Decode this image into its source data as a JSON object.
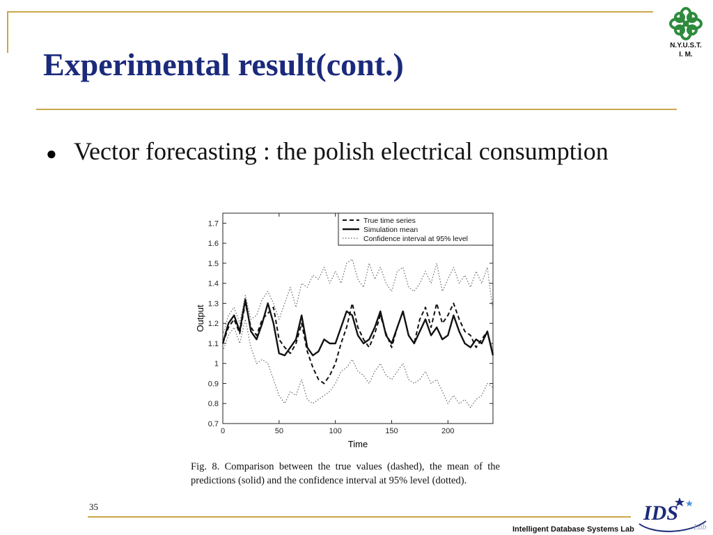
{
  "slide": {
    "title": "Experimental result(cont.)",
    "bullet": "Vector forecasting : the polish electrical consumption",
    "caption": "Fig. 8.  Comparison between the true values (dashed), the mean of the predictions (solid) and the confidence interval at 95% level (dotted).",
    "slide_number": "35",
    "footer_lab": "Intelligent Database Systems Lab",
    "logo_top_line1": "N.Y.U.S.T.",
    "logo_top_line2": "I. M.",
    "colors": {
      "title": "#1b2a7a",
      "rule": "#c8a64a",
      "logo_green": "#2e8b3e"
    }
  },
  "chart_data": {
    "type": "line",
    "xlabel": "Time",
    "ylabel": "Output",
    "xlim": [
      0,
      240
    ],
    "ylim": [
      0.7,
      1.75
    ],
    "xticks": [
      0,
      50,
      100,
      150,
      200
    ],
    "yticks": [
      0.7,
      0.8,
      0.9,
      1,
      1.1,
      1.2,
      1.3,
      1.4,
      1.5,
      1.6,
      1.7
    ],
    "legend": "top-right",
    "series": [
      {
        "name": "True time series",
        "style": "dashed",
        "x": [
          0,
          5,
          10,
          15,
          20,
          25,
          30,
          35,
          40,
          45,
          50,
          55,
          60,
          65,
          70,
          75,
          80,
          85,
          90,
          95,
          100,
          105,
          110,
          115,
          120,
          125,
          130,
          135,
          140,
          145,
          150,
          155,
          160,
          165,
          170,
          175,
          180,
          185,
          190,
          195,
          200,
          205,
          210,
          215,
          220,
          225,
          230,
          235,
          240
        ],
        "y": [
          1.1,
          1.18,
          1.22,
          1.15,
          1.3,
          1.18,
          1.14,
          1.22,
          1.25,
          1.28,
          1.12,
          1.08,
          1.05,
          1.1,
          1.2,
          1.06,
          0.98,
          0.92,
          0.9,
          0.94,
          1.0,
          1.1,
          1.18,
          1.3,
          1.18,
          1.12,
          1.08,
          1.15,
          1.24,
          1.15,
          1.08,
          1.18,
          1.26,
          1.14,
          1.1,
          1.22,
          1.28,
          1.18,
          1.3,
          1.2,
          1.24,
          1.3,
          1.22,
          1.16,
          1.14,
          1.08,
          1.12,
          1.16,
          1.05
        ]
      },
      {
        "name": "Simulation mean",
        "style": "solid",
        "x": [
          0,
          5,
          10,
          15,
          20,
          25,
          30,
          35,
          40,
          45,
          50,
          55,
          60,
          65,
          70,
          75,
          80,
          85,
          90,
          95,
          100,
          105,
          110,
          115,
          120,
          125,
          130,
          135,
          140,
          145,
          150,
          155,
          160,
          165,
          170,
          175,
          180,
          185,
          190,
          195,
          200,
          205,
          210,
          215,
          220,
          225,
          230,
          235,
          240
        ],
        "y": [
          1.1,
          1.2,
          1.24,
          1.16,
          1.32,
          1.16,
          1.12,
          1.2,
          1.3,
          1.2,
          1.05,
          1.04,
          1.08,
          1.12,
          1.24,
          1.08,
          1.04,
          1.06,
          1.12,
          1.1,
          1.1,
          1.18,
          1.26,
          1.24,
          1.14,
          1.1,
          1.12,
          1.18,
          1.26,
          1.14,
          1.1,
          1.18,
          1.26,
          1.14,
          1.1,
          1.16,
          1.22,
          1.14,
          1.18,
          1.12,
          1.14,
          1.24,
          1.16,
          1.1,
          1.08,
          1.12,
          1.1,
          1.16,
          1.04
        ]
      },
      {
        "name": "Confidence interval at 95% level",
        "style": "dotted",
        "bound": "upper",
        "x": [
          0,
          5,
          10,
          15,
          20,
          25,
          30,
          35,
          40,
          45,
          50,
          55,
          60,
          65,
          70,
          75,
          80,
          85,
          90,
          95,
          100,
          105,
          110,
          115,
          120,
          125,
          130,
          135,
          140,
          145,
          150,
          155,
          160,
          165,
          170,
          175,
          180,
          185,
          190,
          195,
          200,
          205,
          210,
          215,
          220,
          225,
          230,
          235,
          240
        ],
        "y": [
          1.14,
          1.24,
          1.28,
          1.2,
          1.34,
          1.22,
          1.24,
          1.32,
          1.36,
          1.3,
          1.22,
          1.3,
          1.38,
          1.28,
          1.4,
          1.38,
          1.44,
          1.42,
          1.48,
          1.4,
          1.46,
          1.4,
          1.5,
          1.52,
          1.42,
          1.38,
          1.5,
          1.42,
          1.48,
          1.4,
          1.36,
          1.46,
          1.48,
          1.38,
          1.36,
          1.4,
          1.46,
          1.4,
          1.5,
          1.36,
          1.42,
          1.48,
          1.4,
          1.44,
          1.38,
          1.46,
          1.4,
          1.48,
          1.26
        ]
      },
      {
        "name": "Confidence interval at 95% level",
        "style": "dotted",
        "bound": "lower",
        "x": [
          0,
          5,
          10,
          15,
          20,
          25,
          30,
          35,
          40,
          45,
          50,
          55,
          60,
          65,
          70,
          75,
          80,
          85,
          90,
          95,
          100,
          105,
          110,
          115,
          120,
          125,
          130,
          135,
          140,
          145,
          150,
          155,
          160,
          165,
          170,
          175,
          180,
          185,
          190,
          195,
          200,
          205,
          210,
          215,
          220,
          225,
          230,
          235,
          240
        ],
        "y": [
          1.06,
          1.14,
          1.18,
          1.1,
          1.22,
          1.08,
          1.0,
          1.02,
          1.0,
          0.92,
          0.84,
          0.8,
          0.86,
          0.84,
          0.92,
          0.82,
          0.8,
          0.82,
          0.84,
          0.86,
          0.9,
          0.96,
          0.98,
          1.02,
          0.96,
          0.94,
          0.9,
          0.96,
          1.0,
          0.94,
          0.92,
          0.96,
          1.0,
          0.92,
          0.9,
          0.92,
          0.96,
          0.9,
          0.92,
          0.86,
          0.8,
          0.84,
          0.8,
          0.82,
          0.78,
          0.82,
          0.84,
          0.9,
          0.88
        ]
      }
    ]
  }
}
